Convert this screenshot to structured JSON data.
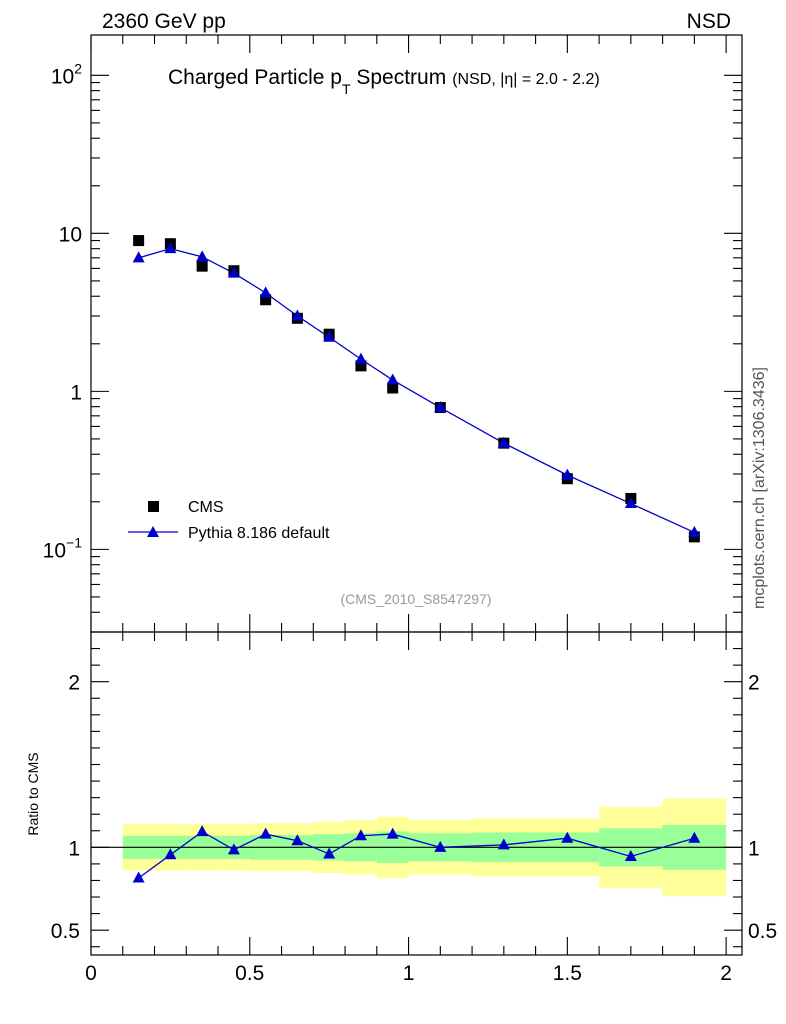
{
  "header": {
    "left": "2360 GeV pp",
    "right": "NSD"
  },
  "side_label": "mcplots.cern.ch [arXiv:1306.3436]",
  "watermark": "(CMS_2010_S8547297)",
  "chart_data": [
    {
      "type": "scatter",
      "title_main": "Charged Particle p",
      "title_sub": "T",
      "title_rest": " Spectrum",
      "title_small": "(NSD, |η| = 2.0 - 2.2)",
      "xlim": [
        0,
        2.05
      ],
      "ylim": [
        0.03,
        180
      ],
      "yscale": "log",
      "yticks": [
        {
          "v": 100,
          "base": "10",
          "exp": "2"
        },
        {
          "v": 10,
          "base": "10",
          "exp": ""
        },
        {
          "v": 1,
          "base": "1",
          "exp": ""
        },
        {
          "v": 0.1,
          "base": "10",
          "exp": "−1"
        }
      ],
      "legend": {
        "position": "bottom-left",
        "items": [
          "CMS",
          "Pythia 8.186 default"
        ]
      },
      "series": [
        {
          "name": "CMS",
          "marker": "square",
          "color": "#000000",
          "x": [
            0.15,
            0.25,
            0.35,
            0.45,
            0.55,
            0.65,
            0.75,
            0.85,
            0.95,
            1.1,
            1.3,
            1.5,
            1.7,
            1.9
          ],
          "y": [
            9.0,
            8.6,
            6.2,
            5.8,
            3.8,
            2.9,
            2.3,
            1.45,
            1.05,
            0.79,
            0.47,
            0.28,
            0.21,
            0.12
          ]
        },
        {
          "name": "Pythia 8.186 default",
          "marker": "triangle",
          "color": "#0000cc",
          "x": [
            0.15,
            0.25,
            0.35,
            0.45,
            0.55,
            0.65,
            0.75,
            0.85,
            0.95,
            1.1,
            1.3,
            1.5,
            1.7,
            1.9
          ],
          "y": [
            7.0,
            8.0,
            7.1,
            5.6,
            4.2,
            3.0,
            2.2,
            1.6,
            1.18,
            0.79,
            0.47,
            0.295,
            0.195,
            0.128
          ]
        }
      ]
    },
    {
      "type": "scatter",
      "ylabel": "Ratio to CMS",
      "xlim": [
        0,
        2.05
      ],
      "ylim": [
        0.35,
        2.3
      ],
      "yticks": [
        2,
        1,
        0.5
      ],
      "ytick_labels": [
        "2",
        "1",
        "0.5"
      ],
      "xticks": [
        0,
        0.5,
        1,
        1.5,
        2
      ],
      "xtick_labels": [
        "0",
        "0.5",
        "1",
        "1.5",
        "2"
      ],
      "reference_line": 1,
      "bands": [
        {
          "x0": 0.1,
          "x1": 0.2,
          "inner": [
            0.93,
            1.07
          ],
          "outer": [
            0.86,
            1.14
          ]
        },
        {
          "x0": 0.2,
          "x1": 0.3,
          "inner": [
            0.93,
            1.07
          ],
          "outer": [
            0.86,
            1.14
          ]
        },
        {
          "x0": 0.3,
          "x1": 0.4,
          "inner": [
            0.93,
            1.07
          ],
          "outer": [
            0.86,
            1.14
          ]
        },
        {
          "x0": 0.4,
          "x1": 0.5,
          "inner": [
            0.93,
            1.07
          ],
          "outer": [
            0.86,
            1.14
          ]
        },
        {
          "x0": 0.5,
          "x1": 0.6,
          "inner": [
            0.925,
            1.075
          ],
          "outer": [
            0.855,
            1.145
          ]
        },
        {
          "x0": 0.6,
          "x1": 0.7,
          "inner": [
            0.925,
            1.075
          ],
          "outer": [
            0.855,
            1.145
          ]
        },
        {
          "x0": 0.7,
          "x1": 0.8,
          "inner": [
            0.92,
            1.08
          ],
          "outer": [
            0.845,
            1.155
          ]
        },
        {
          "x0": 0.8,
          "x1": 0.9,
          "inner": [
            0.915,
            1.085
          ],
          "outer": [
            0.835,
            1.165
          ]
        },
        {
          "x0": 0.9,
          "x1": 1.0,
          "inner": [
            0.905,
            1.095
          ],
          "outer": [
            0.815,
            1.185
          ]
        },
        {
          "x0": 1.0,
          "x1": 1.2,
          "inner": [
            0.915,
            1.085
          ],
          "outer": [
            0.835,
            1.165
          ]
        },
        {
          "x0": 1.2,
          "x1": 1.4,
          "inner": [
            0.91,
            1.09
          ],
          "outer": [
            0.825,
            1.175
          ]
        },
        {
          "x0": 1.4,
          "x1": 1.6,
          "inner": [
            0.91,
            1.09
          ],
          "outer": [
            0.825,
            1.175
          ]
        },
        {
          "x0": 1.6,
          "x1": 1.8,
          "inner": [
            0.885,
            1.115
          ],
          "outer": [
            0.755,
            1.245
          ]
        },
        {
          "x0": 1.8,
          "x1": 2.0,
          "inner": [
            0.865,
            1.135
          ],
          "outer": [
            0.705,
            1.295
          ]
        }
      ],
      "band_colors": {
        "inner": "#99ff99",
        "outer": "#ffff99"
      },
      "series": [
        {
          "name": "Pythia 8.186 default",
          "marker": "triangle",
          "color": "#0000cc",
          "x": [
            0.15,
            0.25,
            0.35,
            0.45,
            0.55,
            0.65,
            0.75,
            0.85,
            0.95,
            1.1,
            1.3,
            1.5,
            1.7,
            1.9
          ],
          "y": [
            0.815,
            0.955,
            1.095,
            0.985,
            1.08,
            1.04,
            0.96,
            1.07,
            1.08,
            1.0,
            1.015,
            1.055,
            0.945,
            1.055
          ]
        }
      ]
    }
  ]
}
